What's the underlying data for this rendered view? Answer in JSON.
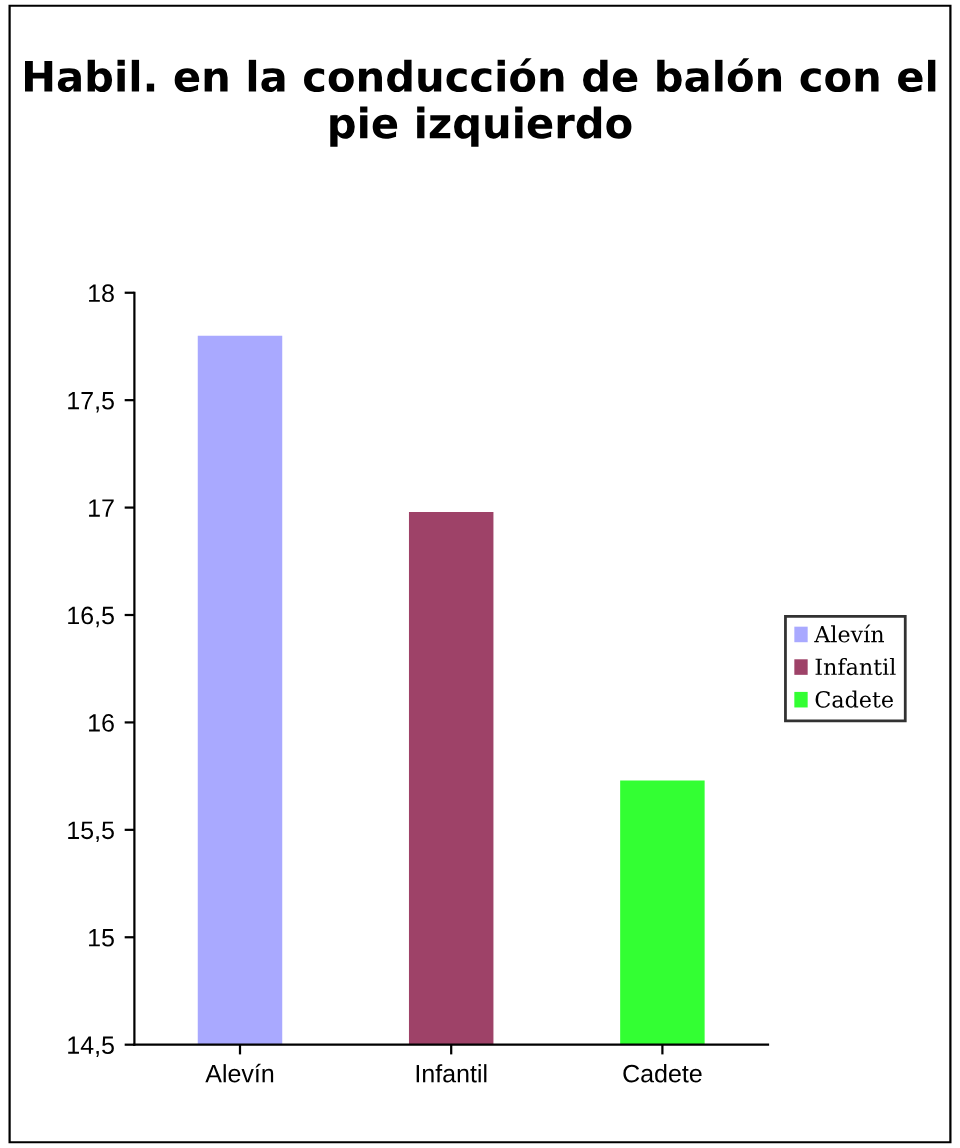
{
  "chart_data": {
    "type": "bar",
    "title": "Habil. en la conducción de balón con el pie izquierdo",
    "categories": [
      "Alevín",
      "Infantil",
      "Cadete"
    ],
    "series": [
      {
        "name": "Alevín",
        "color": "#a9a9ff",
        "values": [
          17.8,
          null,
          null
        ]
      },
      {
        "name": "Infantil",
        "color": "#9e4268",
        "values": [
          null,
          16.98,
          null
        ]
      },
      {
        "name": "Cadete",
        "color": "#33ff33",
        "values": [
          null,
          null,
          15.73
        ]
      }
    ],
    "ylim": [
      14.5,
      18
    ],
    "yticks": [
      {
        "value": 14.5,
        "label": "14,5"
      },
      15,
      {
        "value": 15.5,
        "label": "15,5"
      },
      16,
      {
        "value": 16.5,
        "label": "16,5"
      },
      17,
      {
        "value": 17.5,
        "label": "17,5"
      },
      18
    ],
    "grid": false,
    "legend": "right"
  }
}
